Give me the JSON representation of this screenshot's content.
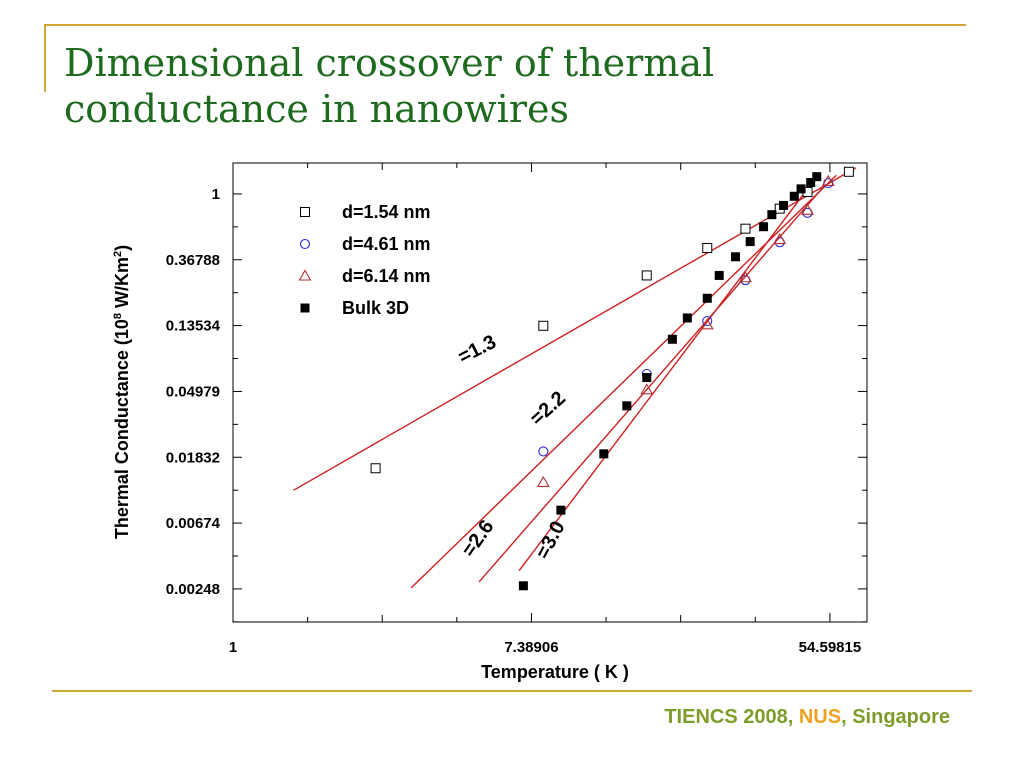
{
  "slide": {
    "title_line1": "Dimensional crossover of thermal",
    "title_line2": "conductance in nanowires",
    "footer": {
      "part1": "TIENCS  2008, ",
      "part2": "NUS",
      "part3": ", Singapore"
    }
  },
  "colors": {
    "accent_bar": "#d4a531",
    "title": "#1e6a1e",
    "footer": "#7e9c2a",
    "footer_highlight": "#f0a020",
    "fit_line": "#cc2020",
    "series_blue": "#2a2ad8",
    "series_red": "#b03030"
  },
  "chart_data": {
    "type": "scatter",
    "title": "",
    "xlabel": "Temperature ( K )",
    "ylabel_main": "Thermal Conductance (10",
    "ylabel_sup": "8",
    "ylabel_mid": " W/Km",
    "ylabel_sup2": "2",
    "ylabel_end": ")",
    "xscale": "ln",
    "yscale": "ln",
    "xlim": [
      1,
      70
    ],
    "ylim": [
      0.0015,
      1.6
    ],
    "xticks": [
      1,
      7.38906,
      54.59815
    ],
    "xtick_labels": [
      "1",
      "7.38906",
      "54.59815"
    ],
    "yticks": [
      1,
      0.36788,
      0.13534,
      0.04979,
      0.01832,
      0.00674,
      0.00248
    ],
    "ytick_labels": [
      "1",
      "0.36788",
      "0.13534",
      "0.04979",
      "0.01832",
      "0.00674",
      "0.00248"
    ],
    "legend_position": "top-left",
    "series": [
      {
        "name": "d=1.54 nm",
        "marker": "open-square",
        "x": [
          2.6,
          8,
          16,
          24,
          31,
          39,
          47,
          62
        ],
        "y": [
          0.0155,
          0.135,
          0.29,
          0.44,
          0.59,
          0.8,
          1.03,
          1.4
        ]
      },
      {
        "name": "d=4.61 nm",
        "marker": "open-circle",
        "x": [
          8,
          16,
          24,
          31,
          39,
          47,
          54
        ],
        "y": [
          0.02,
          0.065,
          0.145,
          0.27,
          0.48,
          0.75,
          1.18
        ]
      },
      {
        "name": "d=6.14 nm",
        "marker": "open-triangle",
        "x": [
          8,
          16,
          24,
          31,
          39,
          47,
          54
        ],
        "y": [
          0.0125,
          0.051,
          0.137,
          0.28,
          0.5,
          0.78,
          1.21
        ]
      },
      {
        "name": "Bulk 3D",
        "marker": "filled-square",
        "x": [
          7,
          9,
          12,
          14,
          16,
          19,
          21,
          24,
          26,
          29,
          32,
          35,
          37,
          40,
          43,
          45,
          48,
          50
        ],
        "y": [
          0.0026,
          0.0082,
          0.0193,
          0.04,
          0.0615,
          0.11,
          0.152,
          0.205,
          0.29,
          0.385,
          0.485,
          0.608,
          0.73,
          0.84,
          0.965,
          1.08,
          1.19,
          1.3
        ]
      }
    ],
    "fit_lines": [
      {
        "label": "=1.3",
        "slope": 1.3,
        "x": [
          1.5,
          65
        ]
      },
      {
        "label": "=2.2",
        "slope": 2.2,
        "x": [
          3.3,
          57
        ]
      },
      {
        "label": "=2.6",
        "slope": 2.6,
        "x": [
          5.2,
          52
        ]
      },
      {
        "label": "=3.0",
        "slope": 3.0,
        "x": [
          6.8,
          48
        ]
      }
    ]
  }
}
